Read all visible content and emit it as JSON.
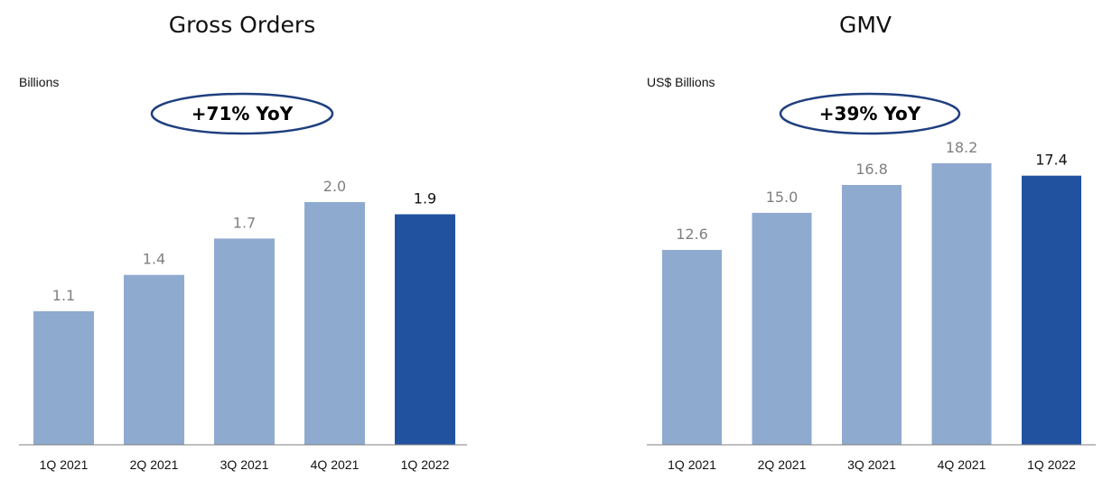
{
  "colors": {
    "bar": "#8faacf",
    "highlight": "#2152a0",
    "axis": "#7f7f7f",
    "ellipse_stroke": "#1f3f7f"
  },
  "chart_data": [
    {
      "type": "bar",
      "title": "Gross Orders",
      "unit_label": "Billions",
      "callout": "+71% YoY",
      "categories": [
        "1Q 2021",
        "2Q 2021",
        "3Q 2021",
        "4Q 2021",
        "1Q 2022"
      ],
      "values": [
        1.1,
        1.4,
        1.7,
        2.0,
        1.9
      ],
      "value_labels": [
        "1.1",
        "1.4",
        "1.7",
        "2.0",
        "1.9"
      ],
      "highlight_index": 4,
      "ylim": [
        0,
        2.0
      ],
      "grid": false,
      "legend": "none"
    },
    {
      "type": "bar",
      "title": "GMV",
      "unit_label": "US$ Billions",
      "callout": "+39% YoY",
      "categories": [
        "1Q 2021",
        "2Q 2021",
        "3Q 2021",
        "4Q 2021",
        "1Q 2022"
      ],
      "values": [
        12.6,
        15.0,
        16.8,
        18.2,
        17.4
      ],
      "value_labels": [
        "12.6",
        "15.0",
        "16.8",
        "18.2",
        "17.4"
      ],
      "highlight_index": 4,
      "ylim": [
        0,
        18.2
      ],
      "grid": false,
      "legend": "none"
    }
  ]
}
